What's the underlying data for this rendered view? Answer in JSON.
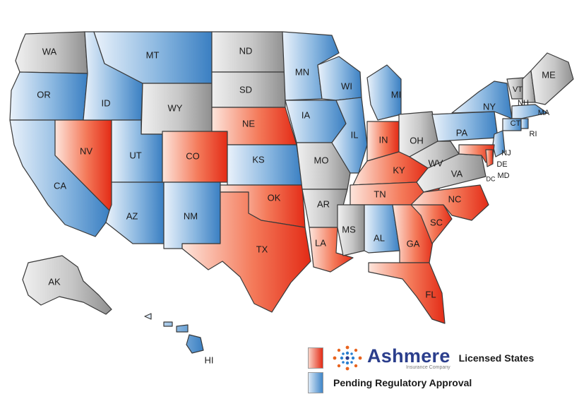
{
  "legend": {
    "brand_name": "Ashmere",
    "brand_sub": "Insurance Company",
    "licensed_label": "Licensed States",
    "pending_label": "Pending Regulatory Approval",
    "licensed_color": "#e8361e",
    "pending_color": "#3f86c8",
    "neutral_color": "#a9a9a9"
  },
  "states": [
    {
      "code": "WA",
      "label": "WA",
      "status": "neutral"
    },
    {
      "code": "OR",
      "label": "OR",
      "status": "pending"
    },
    {
      "code": "CA",
      "label": "CA",
      "status": "pending"
    },
    {
      "code": "NV",
      "label": "NV",
      "status": "licensed"
    },
    {
      "code": "ID",
      "label": "ID",
      "status": "pending"
    },
    {
      "code": "MT",
      "label": "MT",
      "status": "pending"
    },
    {
      "code": "WY",
      "label": "WY",
      "status": "neutral"
    },
    {
      "code": "UT",
      "label": "UT",
      "status": "pending"
    },
    {
      "code": "AZ",
      "label": "AZ",
      "status": "pending"
    },
    {
      "code": "CO",
      "label": "CO",
      "status": "licensed"
    },
    {
      "code": "NM",
      "label": "NM",
      "status": "pending"
    },
    {
      "code": "ND",
      "label": "ND",
      "status": "neutral"
    },
    {
      "code": "SD",
      "label": "SD",
      "status": "neutral"
    },
    {
      "code": "NE",
      "label": "NE",
      "status": "licensed"
    },
    {
      "code": "KS",
      "label": "KS",
      "status": "pending"
    },
    {
      "code": "OK",
      "label": "OK",
      "status": "licensed"
    },
    {
      "code": "TX",
      "label": "TX",
      "status": "licensed"
    },
    {
      "code": "MN",
      "label": "MN",
      "status": "pending"
    },
    {
      "code": "IA",
      "label": "IA",
      "status": "pending"
    },
    {
      "code": "MO",
      "label": "MO",
      "status": "neutral"
    },
    {
      "code": "AR",
      "label": "AR",
      "status": "neutral"
    },
    {
      "code": "LA",
      "label": "LA",
      "status": "licensed"
    },
    {
      "code": "WI",
      "label": "WI",
      "status": "pending"
    },
    {
      "code": "IL",
      "label": "IL",
      "status": "pending"
    },
    {
      "code": "MI",
      "label": "MI",
      "status": "pending"
    },
    {
      "code": "IN",
      "label": "IN",
      "status": "licensed"
    },
    {
      "code": "OH",
      "label": "OH",
      "status": "neutral"
    },
    {
      "code": "KY",
      "label": "KY",
      "status": "licensed"
    },
    {
      "code": "TN",
      "label": "TN",
      "status": "licensed"
    },
    {
      "code": "MS",
      "label": "MS",
      "status": "neutral"
    },
    {
      "code": "AL",
      "label": "AL",
      "status": "pending"
    },
    {
      "code": "GA",
      "label": "GA",
      "status": "licensed"
    },
    {
      "code": "FL",
      "label": "FL",
      "status": "licensed"
    },
    {
      "code": "SC",
      "label": "SC",
      "status": "licensed"
    },
    {
      "code": "NC",
      "label": "NC",
      "status": "licensed"
    },
    {
      "code": "VA",
      "label": "VA",
      "status": "neutral"
    },
    {
      "code": "WV",
      "label": "WV",
      "status": "neutral"
    },
    {
      "code": "PA",
      "label": "PA",
      "status": "pending"
    },
    {
      "code": "NY",
      "label": "NY",
      "status": "pending"
    },
    {
      "code": "VT",
      "label": "VT",
      "status": "neutral"
    },
    {
      "code": "NH",
      "label": "NH",
      "status": "neutral"
    },
    {
      "code": "ME",
      "label": "ME",
      "status": "neutral"
    },
    {
      "code": "MA",
      "label": "MA",
      "status": "pending"
    },
    {
      "code": "CT",
      "label": "CT",
      "status": "pending"
    },
    {
      "code": "RI",
      "label": "RI",
      "status": "pending"
    },
    {
      "code": "NJ",
      "label": "NJ",
      "status": "pending"
    },
    {
      "code": "DE",
      "label": "DE",
      "status": "licensed"
    },
    {
      "code": "MD",
      "label": "MD",
      "status": "licensed"
    },
    {
      "code": "DC",
      "label": "DC",
      "status": "licensed"
    },
    {
      "code": "AK",
      "label": "AK",
      "status": "neutral"
    },
    {
      "code": "HI",
      "label": "HI",
      "status": "pending"
    }
  ]
}
